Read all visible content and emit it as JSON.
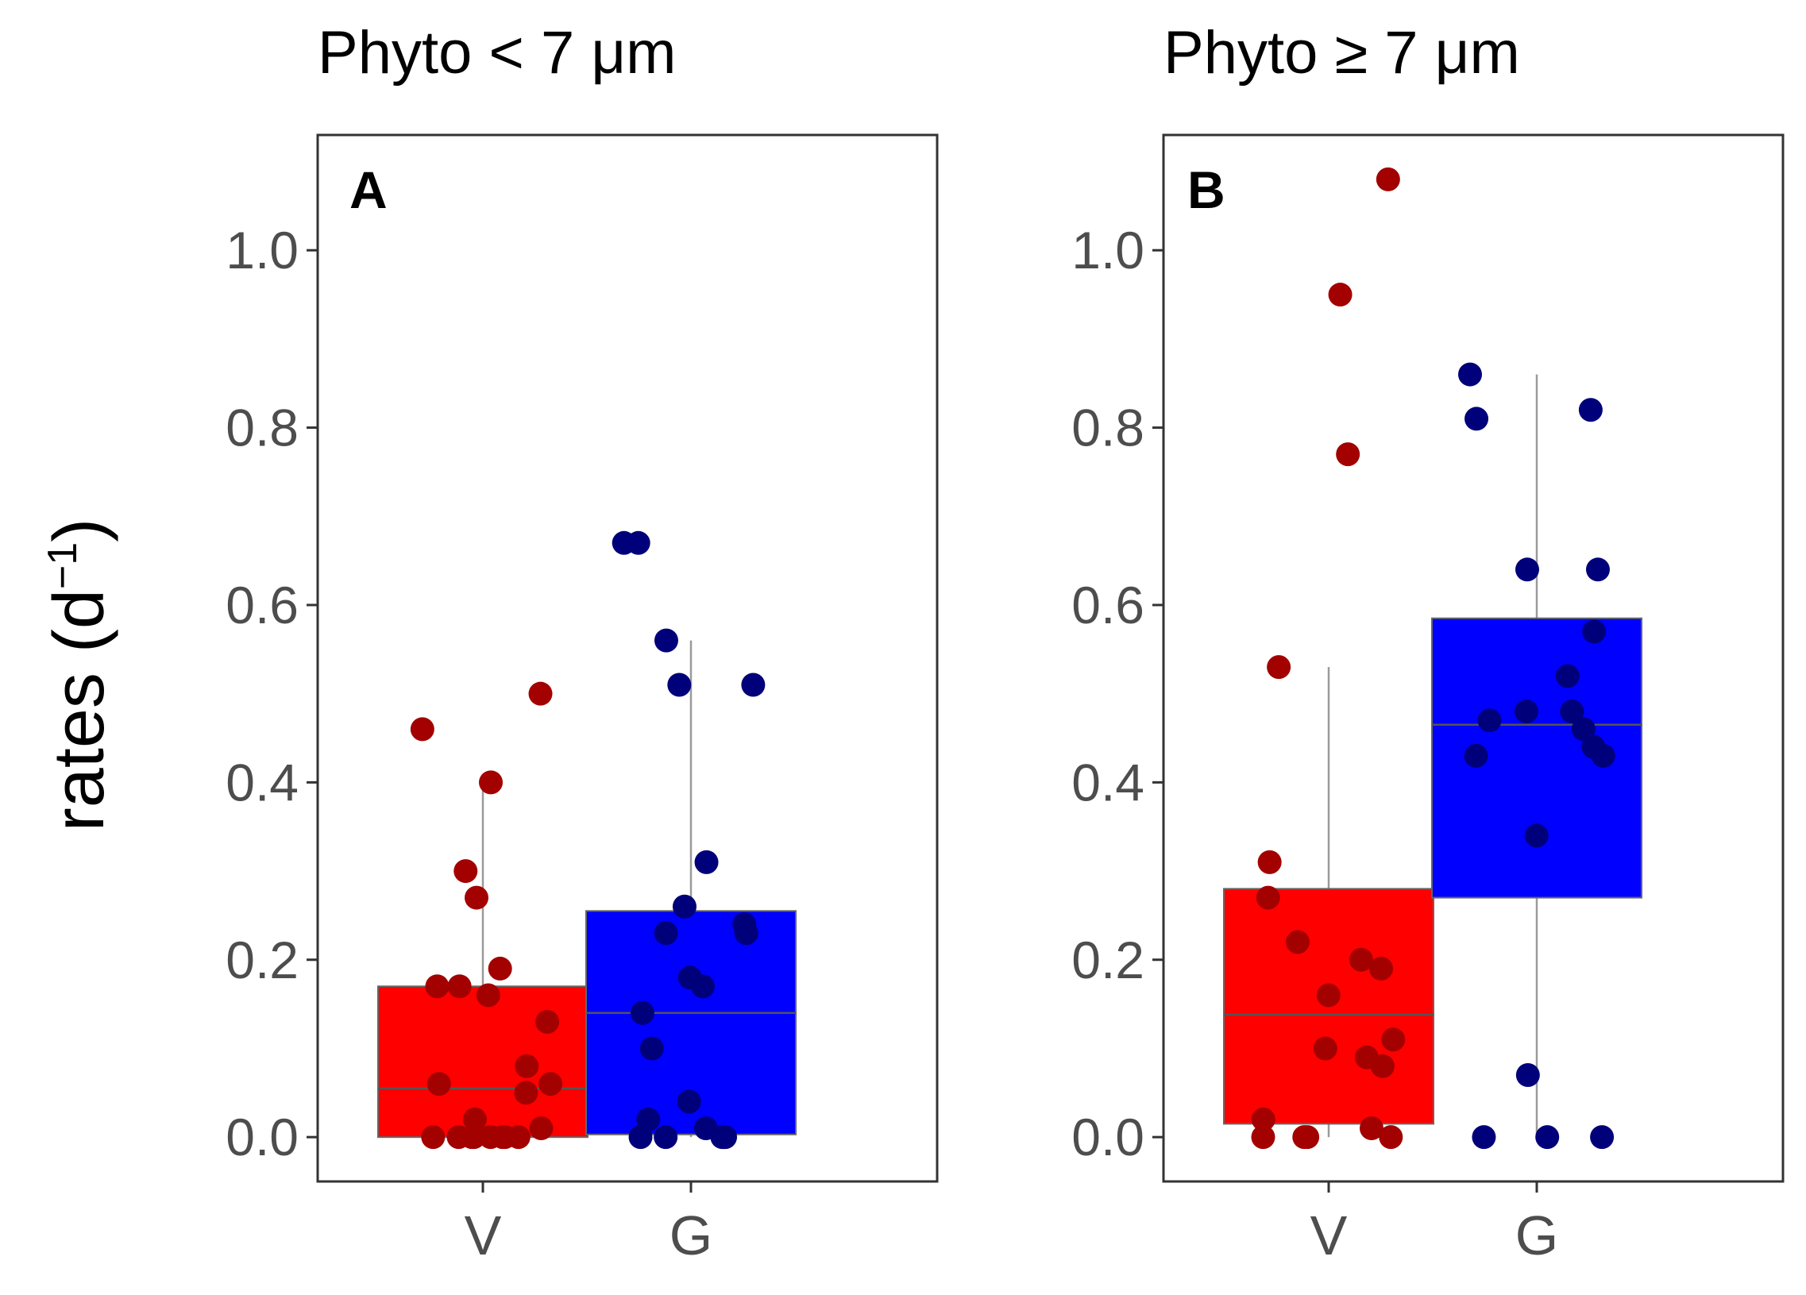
{
  "chart_data": {
    "type": "box",
    "ylabel": "rates (d",
    "ylabel_sup": "−1",
    "ylabel_close": ")",
    "ylim": [
      -0.05,
      1.13
    ],
    "yticks": [
      "0.0",
      "0.2",
      "0.4",
      "0.6",
      "0.8",
      "1.0"
    ],
    "ytick_values": [
      0.0,
      0.2,
      0.4,
      0.6,
      0.8,
      1.0
    ],
    "colors": {
      "V_fill": "#ff0000",
      "V_point": "#a30000",
      "G_fill": "#0000ff",
      "G_point": "#00007a",
      "whisker": "#9a9a9a",
      "median": "#555555"
    },
    "panels": [
      {
        "title": "Phyto < 7 μm",
        "letter": "A",
        "categories": [
          "V",
          "G"
        ],
        "groups": [
          {
            "name": "V",
            "box": {
              "q1": 0.0,
              "median": 0.055,
              "q3": 0.17,
              "whisker_low": 0.0,
              "whisker_high": 0.4
            },
            "points": [
              0.5,
              0.46,
              0.4,
              0.3,
              0.27,
              0.19,
              0.17,
              0.17,
              0.16,
              0.13,
              0.08,
              0.06,
              0.06,
              0.05,
              0.02,
              0.01,
              0.0,
              0.0,
              0.0,
              0.0,
              0.0,
              0.0,
              0.0,
              0.0
            ]
          },
          {
            "name": "G",
            "box": {
              "q1": 0.003,
              "median": 0.14,
              "q3": 0.255,
              "whisker_low": 0.0,
              "whisker_high": 0.56
            },
            "points": [
              0.67,
              0.67,
              0.56,
              0.51,
              0.51,
              0.31,
              0.26,
              0.24,
              0.23,
              0.23,
              0.18,
              0.17,
              0.14,
              0.1,
              0.04,
              0.02,
              0.01,
              0.0,
              0.0,
              0.0,
              0.0,
              0.0,
              0.0
            ]
          }
        ]
      },
      {
        "title": "Phyto ≥ 7 μm",
        "letter": "B",
        "categories": [
          "V",
          "G"
        ],
        "groups": [
          {
            "name": "V",
            "box": {
              "q1": 0.015,
              "median": 0.138,
              "q3": 0.28,
              "whisker_low": 0.0,
              "whisker_high": 0.53
            },
            "points": [
              1.08,
              0.95,
              0.77,
              0.53,
              0.31,
              0.27,
              0.22,
              0.2,
              0.19,
              0.16,
              0.11,
              0.1,
              0.09,
              0.08,
              0.02,
              0.01,
              0.0,
              0.0,
              0.0,
              0.0
            ]
          },
          {
            "name": "G",
            "box": {
              "q1": 0.27,
              "median": 0.465,
              "q3": 0.585,
              "whisker_low": 0.0,
              "whisker_high": 0.86
            },
            "points": [
              0.86,
              0.82,
              0.81,
              0.64,
              0.64,
              0.57,
              0.52,
              0.48,
              0.48,
              0.47,
              0.46,
              0.44,
              0.43,
              0.43,
              0.34,
              0.07,
              0.0,
              0.0,
              0.0
            ]
          }
        ]
      }
    ]
  }
}
